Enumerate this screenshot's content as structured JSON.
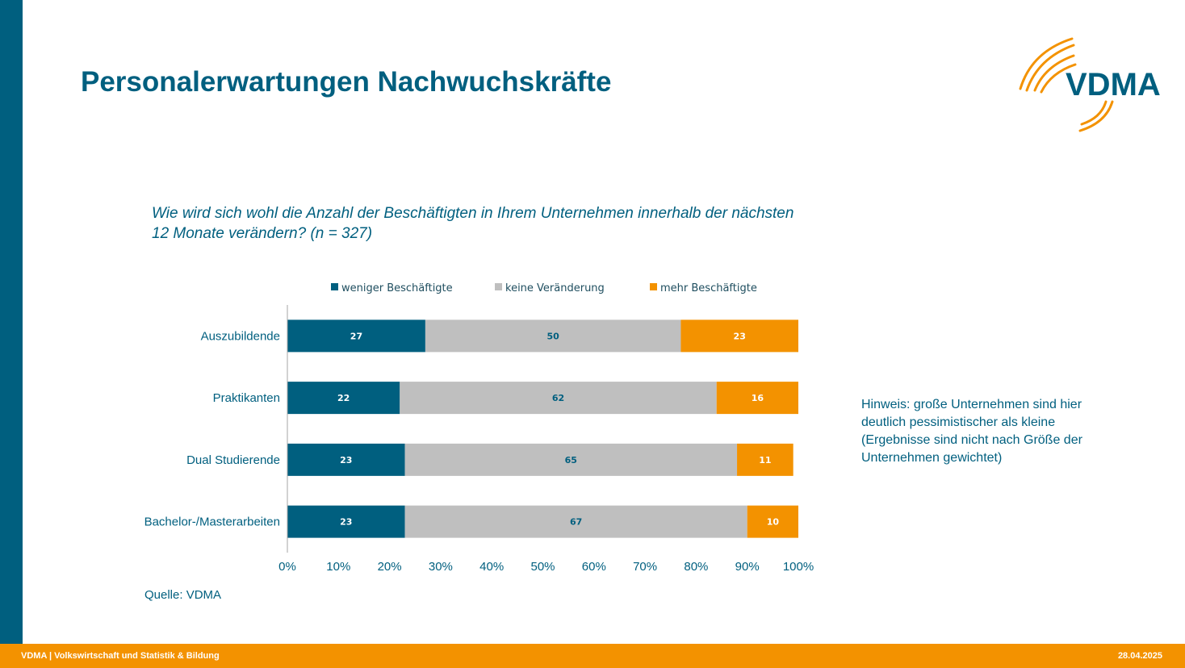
{
  "slide": {
    "title": "Personalerwartungen Nachwuchskräfte",
    "question_line1": "Wie wird sich wohl die Anzahl der Beschäftigten in Ihrem Unternehmen innerhalb der nächsten",
    "question_line2": "12 Monate verändern? (n = 327)",
    "note_lines": [
      "Hinweis: große Unternehmen sind hier",
      "deutlich pessimistischer als kleine",
      "(Ergebnisse sind nicht nach Größe der",
      "Unternehmen gewichtet)"
    ],
    "source": "Quelle: VDMA",
    "logo_text": "VDMA",
    "footer_left": "VDMA | Volkswirtschaft und Statistik & Bildung",
    "footer_right": "28.04.2025"
  },
  "colors": {
    "brand_blue": "#005f7f",
    "brand_orange": "#f39200",
    "grey": "#bfbfbf"
  },
  "chart_data": {
    "type": "bar",
    "orientation": "horizontal",
    "stacked": true,
    "categories": [
      "Auszubildende",
      "Praktikanten",
      "Dual Studierende",
      "Bachelor-/Masterarbeiten"
    ],
    "series": [
      {
        "name": "weniger Beschäftigte",
        "color": "#005f7f",
        "label_color": "#ffffff",
        "values": [
          27,
          22,
          23,
          23
        ]
      },
      {
        "name": "keine Veränderung",
        "color": "#bfbfbf",
        "label_color": "#005f7f",
        "values": [
          50,
          62,
          65,
          67
        ]
      },
      {
        "name": "mehr Beschäftigte",
        "color": "#f39200",
        "label_color": "#ffffff",
        "values": [
          23,
          16,
          11,
          10
        ]
      }
    ],
    "xlim": [
      0,
      100
    ],
    "xticks": [
      "0%",
      "10%",
      "20%",
      "30%",
      "40%",
      "50%",
      "60%",
      "70%",
      "80%",
      "90%",
      "100%"
    ],
    "legend": "top",
    "grid": false
  }
}
